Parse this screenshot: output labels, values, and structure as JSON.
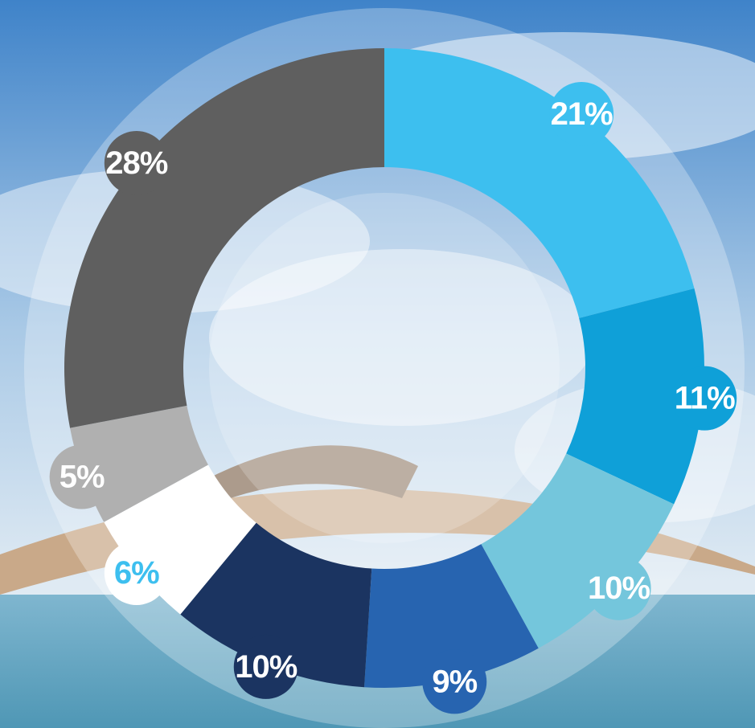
{
  "chart_data": {
    "type": "donut",
    "values": [
      21,
      11,
      10,
      9,
      10,
      6,
      5,
      28
    ],
    "value_labels": [
      "21%",
      "11%",
      "10%",
      "9%",
      "10%",
      "6%",
      "5%",
      "28%"
    ],
    "colors": [
      "#3dbfef",
      "#0fa0d8",
      "#74c6dc",
      "#2764b0",
      "#1b3461",
      "#ffffff",
      "#b0b0b0",
      "#5f5f5f"
    ]
  }
}
